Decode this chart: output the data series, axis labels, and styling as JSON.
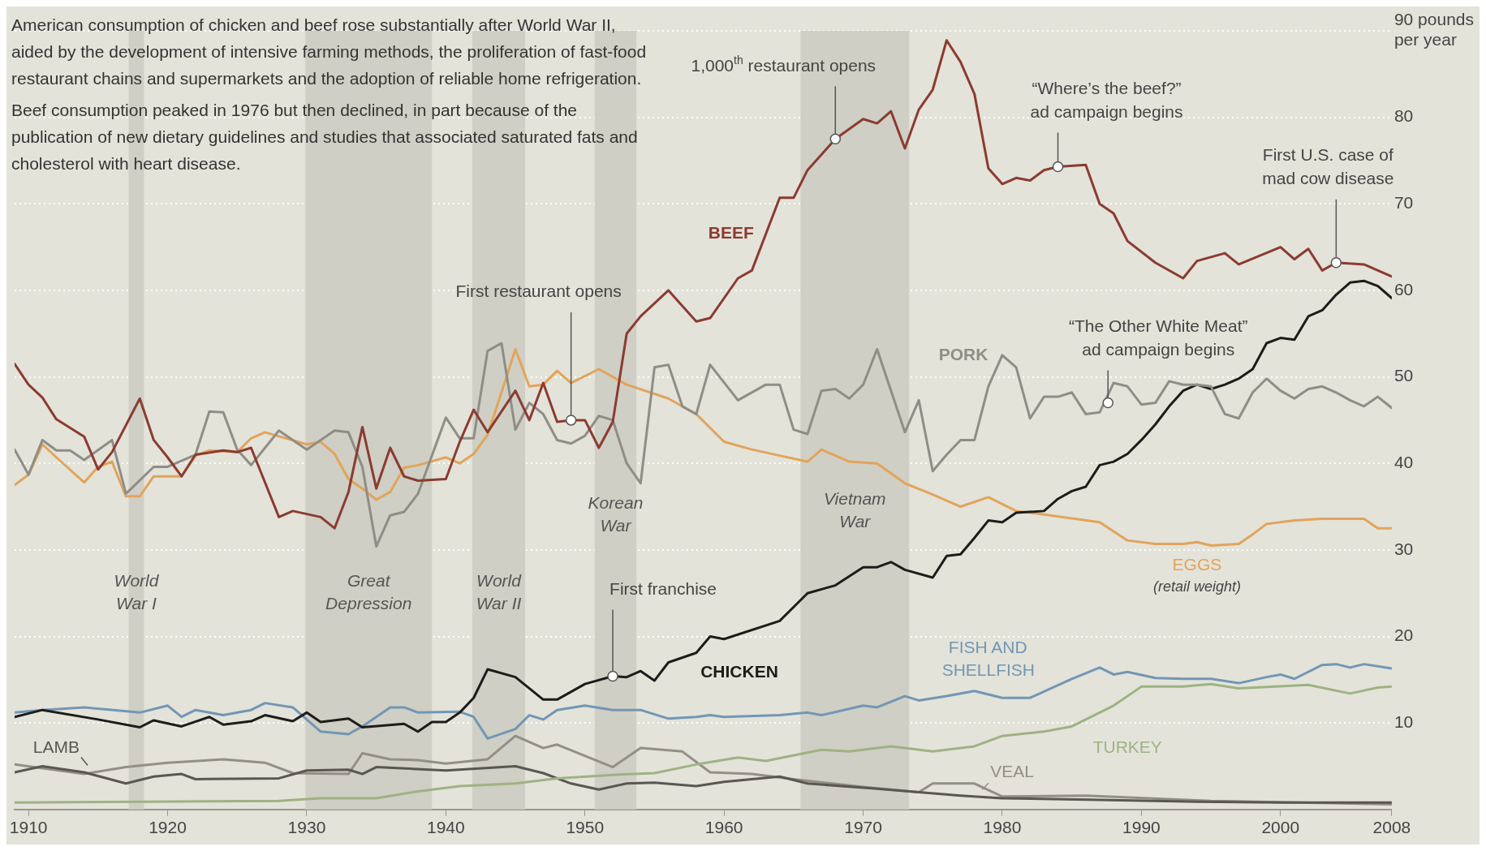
{
  "chart_data": {
    "type": "line",
    "title": "American consumption of chicken and beef rose substantially after World War II, aided by the development of intensive farming methods, the proliferation of fast-food restaurant chains and supermarkets and the adoption of reliable home refrigeration.",
    "subtitle": "Beef consumption peaked in 1976 but then declined, in part because of the publication of new dietary guidelines and studies that associated saturated fats and cholesterol with heart disease.",
    "xlim": [
      1909,
      2008
    ],
    "xticks": [
      1910,
      1920,
      1930,
      1940,
      1950,
      1960,
      1970,
      1980,
      1990,
      2000,
      2008
    ],
    "ylim": [
      0,
      90
    ],
    "yticks": [
      10,
      20,
      30,
      40,
      50,
      60,
      70,
      80,
      {
        "value": 90,
        "label": "90 pounds per year"
      }
    ],
    "grid": "y",
    "legend": false,
    "marker": "none",
    "line_style": "solid",
    "series": [
      {
        "name": "BEEF",
        "color": "#8c3b30",
        "x": [
          1909,
          1910,
          1911,
          1912,
          1914,
          1915,
          1916,
          1918,
          1919,
          1920,
          1921,
          1922,
          1924,
          1925,
          1926,
          1928,
          1929,
          1931,
          1932,
          1933,
          1934,
          1935,
          1936,
          1937,
          1938,
          1940,
          1941,
          1942,
          1943,
          1945,
          1946,
          1947,
          1948,
          1949,
          1950,
          1951,
          1952,
          1953,
          1954,
          1956,
          1958,
          1959,
          1961,
          1962,
          1964,
          1965,
          1966,
          1968,
          1970,
          1971,
          1972,
          1973,
          1974,
          1975,
          1976,
          1977,
          1978,
          1979,
          1980,
          1981,
          1982,
          1983,
          1984,
          1986,
          1987,
          1988,
          1989,
          1991,
          1993,
          1994,
          1996,
          1997,
          2000,
          2001,
          2002,
          2003,
          2004,
          2006,
          2008
        ],
        "values": [
          51.5,
          49.1,
          47.6,
          45.1,
          43.1,
          39.3,
          41.3,
          47.5,
          42.7,
          40.7,
          38.5,
          41,
          41.5,
          41.3,
          41.8,
          33.8,
          34.5,
          33.8,
          32.5,
          36.7,
          44.2,
          37.1,
          41.8,
          38.5,
          38,
          38.2,
          42.5,
          46.2,
          43.6,
          48.4,
          45,
          49.3,
          44.8,
          45,
          45,
          41.8,
          44.8,
          55,
          57,
          60,
          56.4,
          56.8,
          61.4,
          62.3,
          70.7,
          70.7,
          73.9,
          77.5,
          79.8,
          79.3,
          80.7,
          76.4,
          80.9,
          83.2,
          88.9,
          86.4,
          82.7,
          74.1,
          72.3,
          73,
          72.7,
          73.9,
          74.3,
          74.5,
          70,
          68.9,
          65.7,
          63.2,
          61.4,
          63.4,
          64.3,
          63,
          65,
          63.6,
          64.8,
          62.3,
          63.2,
          63,
          61.6
        ]
      },
      {
        "name": "PORK",
        "color": "#8e8e86",
        "x": [
          1909,
          1910,
          1911,
          1912,
          1913,
          1914,
          1916,
          1917,
          1919,
          1920,
          1922,
          1923,
          1924,
          1925,
          1926,
          1928,
          1930,
          1932,
          1933,
          1934,
          1935,
          1936,
          1937,
          1938,
          1940,
          1941,
          1942,
          1943,
          1944,
          1945,
          1946,
          1947,
          1948,
          1949,
          1950,
          1951,
          1952,
          1953,
          1954,
          1955,
          1956,
          1957,
          1958,
          1959,
          1961,
          1963,
          1964,
          1965,
          1966,
          1967,
          1968,
          1969,
          1970,
          1971,
          1973,
          1974,
          1975,
          1976,
          1977,
          1978,
          1979,
          1980,
          1981,
          1982,
          1983,
          1984,
          1985,
          1986,
          1987,
          1988,
          1989,
          1990,
          1991,
          1992,
          1993,
          1994,
          1995,
          1996,
          1997,
          1998,
          1999,
          2000,
          2001,
          2002,
          2003,
          2004,
          2005,
          2006,
          2007,
          2008
        ],
        "values": [
          41.6,
          38.7,
          42.7,
          41.5,
          41.5,
          40.4,
          42.7,
          36.5,
          39.6,
          39.6,
          41,
          46,
          45.9,
          41.6,
          39.8,
          43.8,
          41.6,
          43.8,
          43.6,
          39.6,
          30.4,
          34,
          34.4,
          36.5,
          45.3,
          42.9,
          42.9,
          53,
          53.9,
          43.9,
          47,
          45.7,
          42.7,
          42.3,
          43.2,
          45.5,
          45,
          40,
          37.7,
          51.1,
          51.4,
          46.6,
          45.7,
          51.4,
          47.3,
          49.1,
          49.1,
          43.9,
          43.4,
          48.4,
          48.6,
          47.5,
          49.1,
          53.2,
          43.6,
          47.3,
          39.1,
          41,
          42.7,
          42.7,
          48.9,
          52.5,
          51.1,
          45.2,
          47.7,
          47.7,
          48.2,
          45.7,
          45.9,
          49.3,
          48.9,
          46.8,
          47,
          49.5,
          49.1,
          49.1,
          48.9,
          45.7,
          45.2,
          48.2,
          49.8,
          48.4,
          47.5,
          48.6,
          48.9,
          48.2,
          47.3,
          46.6,
          47.7,
          46.4
        ]
      },
      {
        "name": "CHICKEN",
        "color": "#1e1c1a",
        "x": [
          1909,
          1911,
          1915,
          1918,
          1919,
          1921,
          1923,
          1924,
          1926,
          1927,
          1929,
          1930,
          1931,
          1933,
          1934,
          1937,
          1938,
          1939,
          1940,
          1941,
          1942,
          1943,
          1945,
          1947,
          1948,
          1950,
          1952,
          1953,
          1954,
          1955,
          1956,
          1958,
          1959,
          1960,
          1964,
          1966,
          1968,
          1970,
          1971,
          1972,
          1973,
          1975,
          1976,
          1977,
          1978,
          1979,
          1980,
          1981,
          1983,
          1984,
          1985,
          1986,
          1987,
          1988,
          1989,
          1990,
          1991,
          1992,
          1993,
          1994,
          1995,
          1996,
          1997,
          1998,
          1999,
          2000,
          2001,
          2002,
          2003,
          2004,
          2005,
          2006,
          2007,
          2008
        ],
        "values": [
          10.7,
          11.5,
          10.4,
          9.5,
          10.3,
          9.6,
          10.7,
          9.8,
          10.2,
          10.9,
          10.2,
          11.2,
          10.1,
          10.5,
          9.5,
          9.9,
          9,
          10.1,
          10.1,
          11.2,
          12.9,
          16.2,
          15.3,
          12.7,
          12.7,
          14.5,
          15.4,
          15.3,
          16,
          14.9,
          17,
          18.1,
          20,
          19.7,
          21.8,
          25,
          25.9,
          28,
          28,
          28.6,
          27.7,
          26.8,
          29.3,
          29.5,
          31.4,
          33.4,
          33.2,
          34.3,
          34.5,
          35.9,
          36.8,
          37.3,
          39.8,
          40.2,
          41.1,
          42.7,
          44.5,
          46.6,
          48.4,
          49.1,
          48.6,
          49.1,
          49.8,
          50.9,
          53.9,
          54.5,
          54.3,
          57,
          57.7,
          59.5,
          60.9,
          61.1,
          60.5,
          59.1
        ]
      },
      {
        "name": "EGGS",
        "color": "#e2a45a",
        "x": [
          1909,
          1910,
          1911,
          1912,
          1914,
          1915,
          1916,
          1917,
          1918,
          1919,
          1920,
          1921,
          1922,
          1923,
          1925,
          1926,
          1927,
          1930,
          1931,
          1932,
          1933,
          1934,
          1935,
          1936,
          1937,
          1938,
          1940,
          1941,
          1942,
          1943,
          1944,
          1945,
          1946,
          1947,
          1948,
          1949,
          1951,
          1953,
          1956,
          1958,
          1960,
          1962,
          1964,
          1966,
          1967,
          1969,
          1971,
          1973,
          1975,
          1977,
          1979,
          1981,
          1983,
          1987,
          1989,
          1991,
          1993,
          1994,
          1995,
          1997,
          1998,
          1999,
          2001,
          2003,
          2006,
          2007,
          2008
        ],
        "values": [
          37.5,
          38.7,
          42.2,
          40.7,
          37.8,
          39.6,
          40.2,
          36.2,
          36.2,
          38.5,
          38.5,
          38.5,
          40.9,
          41.5,
          41.3,
          42.9,
          43.6,
          42.2,
          42.5,
          41.1,
          38.2,
          37.1,
          35.8,
          36.7,
          39.5,
          39.8,
          40.7,
          40,
          41.1,
          43.3,
          48.2,
          53.2,
          48.9,
          49.1,
          50.7,
          49.3,
          50.9,
          49.1,
          47.5,
          45.7,
          42.5,
          41.6,
          40.9,
          40.2,
          41.6,
          40.2,
          40,
          37.7,
          36.4,
          35,
          36.1,
          34.5,
          34.1,
          33.2,
          31.1,
          30.7,
          30.7,
          30.9,
          30.5,
          30.7,
          31.8,
          33,
          33.4,
          33.6,
          33.6,
          32.5,
          32.5
        ]
      },
      {
        "name": "FISH AND SHELLFISH",
        "color": "#7396b4",
        "x": [
          1909,
          1911,
          1914,
          1918,
          1920,
          1921,
          1922,
          1924,
          1926,
          1927,
          1929,
          1931,
          1933,
          1934,
          1936,
          1937,
          1938,
          1941,
          1942,
          1943,
          1945,
          1946,
          1947,
          1948,
          1950,
          1952,
          1954,
          1956,
          1958,
          1959,
          1960,
          1964,
          1966,
          1967,
          1970,
          1971,
          1973,
          1974,
          1976,
          1978,
          1980,
          1982,
          1985,
          1987,
          1988,
          1989,
          1991,
          1993,
          1995,
          1997,
          1999,
          2000,
          2001,
          2003,
          2004,
          2005,
          2006,
          2008
        ],
        "values": [
          11.2,
          11.5,
          11.8,
          11.2,
          12,
          10.7,
          11.5,
          10.9,
          11.5,
          12.3,
          11.8,
          9,
          8.7,
          9.6,
          11.8,
          11.8,
          11.2,
          11.3,
          10.7,
          8.2,
          9.3,
          10.9,
          10.4,
          11.5,
          12,
          11.5,
          11.5,
          10.5,
          10.7,
          10.9,
          10.7,
          10.9,
          11.2,
          10.9,
          12,
          11.8,
          13.1,
          12.6,
          13.1,
          13.7,
          12.9,
          12.9,
          15.1,
          16.4,
          15.6,
          15.9,
          15.2,
          15.1,
          15.1,
          14.6,
          15.3,
          15.6,
          15.1,
          16.7,
          16.8,
          16.4,
          16.8,
          16.3
        ]
      },
      {
        "name": "TURKEY",
        "color": "#9db383",
        "x": [
          1909,
          1928,
          1931,
          1935,
          1938,
          1941,
          1945,
          1948,
          1952,
          1955,
          1958,
          1961,
          1963,
          1967,
          1969,
          1972,
          1975,
          1978,
          1980,
          1983,
          1985,
          1988,
          1990,
          1993,
          1995,
          1997,
          2002,
          2005,
          2007,
          2008
        ],
        "values": [
          0.8,
          1,
          1.3,
          1.3,
          2.1,
          2.7,
          3,
          3.6,
          4,
          4.2,
          5.2,
          6,
          5.6,
          6.9,
          6.7,
          7.3,
          6.7,
          7.3,
          8.5,
          9,
          9.6,
          12,
          14.2,
          14.2,
          14.5,
          14,
          14.4,
          13.4,
          14.1,
          14.2
        ]
      },
      {
        "name": "LAMB",
        "color": "#5a5752",
        "x": [
          1909,
          1911,
          1914,
          1917,
          1919,
          1921,
          1922,
          1928,
          1930,
          1933,
          1934,
          1935,
          1940,
          1945,
          1947,
          1949,
          1951,
          1953,
          1955,
          1958,
          1960,
          1964,
          1966,
          1971,
          1974,
          1977,
          1980,
          1987,
          1994,
          2000,
          2008
        ],
        "values": [
          4.3,
          5,
          4.3,
          3,
          3.8,
          4.1,
          3.5,
          3.6,
          4.5,
          4.6,
          4.1,
          4.9,
          4.5,
          5,
          4.2,
          3,
          2.3,
          3,
          3.1,
          2.7,
          3.2,
          3.8,
          3,
          2.4,
          2,
          1.6,
          1.3,
          1.1,
          0.9,
          0.8,
          0.8
        ]
      },
      {
        "name": "VEAL",
        "color": "#948f86",
        "x": [
          1909,
          1914,
          1917,
          1920,
          1924,
          1927,
          1929,
          1933,
          1934,
          1936,
          1938,
          1940,
          1943,
          1945,
          1947,
          1948,
          1952,
          1954,
          1957,
          1959,
          1962,
          1965,
          1970,
          1974,
          1975,
          1978,
          1980,
          1986,
          1995,
          2008
        ],
        "values": [
          5.2,
          4.1,
          4.9,
          5.4,
          5.8,
          5.4,
          4.2,
          4.1,
          6.5,
          5.8,
          5.7,
          5.3,
          5.8,
          8.5,
          7.1,
          7.5,
          4.9,
          7.1,
          6.7,
          4.3,
          4.1,
          3.5,
          2.6,
          2,
          3,
          3,
          1.5,
          1.6,
          1,
          0.6
        ]
      }
    ],
    "bands": [
      {
        "axis": "x",
        "from": 1917.2,
        "to": 1918.3,
        "label": "World War I",
        "color": "#cfcfc5"
      },
      {
        "axis": "x",
        "from": 1929.9,
        "to": 1939,
        "label": "Great Depression",
        "color": "#cfcfc5"
      },
      {
        "axis": "x",
        "from": 1941.9,
        "to": 1945.7,
        "label": "World War II",
        "color": "#cfcfc5"
      },
      {
        "axis": "x",
        "from": 1950.7,
        "to": 1953.7,
        "label": "Korean War",
        "color": "#cfcfc5"
      },
      {
        "axis": "x",
        "from": 1965.5,
        "to": 1973.3,
        "label": "Vietnam War",
        "color": "#cfcfc5"
      }
    ],
    "annotations": [
      {
        "text": "1,000$^{th}$ restaurant opens",
        "x": 1968,
        "y": 77.5
      },
      {
        "text": "First restaurant opens",
        "x": 1949,
        "y": 45
      },
      {
        "text": "First franchise",
        "x": 1952,
        "y": 15.4
      },
      {
        "text": "“Where’s the beef?” ad campaign begins",
        "x": 1984,
        "y": 74.3
      },
      {
        "text": "“The Other White Meat” ad campaign begins",
        "x": 1987.6,
        "y": 47
      },
      {
        "text": "First U.S. case of mad cow disease",
        "x": 2004,
        "y": 63.2
      },
      "(retail weight)"
    ]
  }
}
